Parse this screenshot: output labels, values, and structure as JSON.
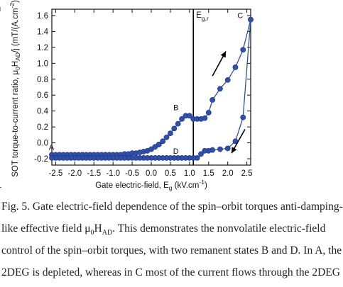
{
  "chart_data": {
    "type": "line",
    "xlabel": "Gate electric-field, E",
    "xlabel_sub": "g",
    "xlabel_unit": " (kV.cm",
    "xlabel_sup": "-1",
    "xlabel_close": ")",
    "ylabel_parts": [
      "SOT torque-to-current ratio, μ",
      "0",
      "H",
      "AD",
      "/j (mT/(A.cm",
      "-2",
      "))"
    ],
    "xlim": [
      -2.6,
      2.6
    ],
    "ylim": [
      -0.28,
      1.68
    ],
    "xticks": [
      "-2.5",
      "-2.0",
      "-1.5",
      "-1.0",
      "-0.5",
      "0.0",
      "0.5",
      "1.0",
      "1.5",
      "2.0",
      "2.5"
    ],
    "xtick_values": [
      -2.5,
      -2.0,
      -1.5,
      -1.0,
      -0.5,
      0.0,
      0.5,
      1.0,
      1.5,
      2.0,
      2.5
    ],
    "yticks": [
      "-0.2",
      "0.0",
      "0.2",
      "0.4",
      "0.6",
      "0.8",
      "1.0",
      "1.2",
      "1.4",
      "1.6"
    ],
    "ytick_values": [
      -0.2,
      0.0,
      0.2,
      0.4,
      0.6,
      0.8,
      1.0,
      1.2,
      1.4,
      1.6
    ],
    "vline": {
      "x": 1.1,
      "label": "E",
      "label_sub": "g,r"
    },
    "series": [
      {
        "color": "#2f4fa8",
        "x": [
          -2.6,
          -2.5,
          -2.4,
          -2.3,
          -2.2,
          -2.1,
          -2.0,
          -1.9,
          -1.8,
          -1.7,
          -1.6,
          -1.5,
          -1.4,
          -1.3,
          -1.2,
          -1.1,
          -1.0,
          -0.9,
          -0.8,
          -0.7,
          -0.6,
          -0.5,
          -0.4,
          -0.3,
          -0.2,
          -0.1,
          0.0,
          0.1,
          0.2,
          0.3,
          0.4,
          0.5,
          0.6,
          0.7,
          0.8,
          0.9,
          1.0,
          1.1,
          1.2,
          1.3,
          1.4,
          1.5,
          1.6,
          1.8,
          2.0,
          2.2,
          2.4,
          2.6
        ],
        "y": [
          -0.15,
          -0.15,
          -0.15,
          -0.15,
          -0.15,
          -0.15,
          -0.15,
          -0.15,
          -0.15,
          -0.15,
          -0.15,
          -0.15,
          -0.15,
          -0.15,
          -0.15,
          -0.15,
          -0.15,
          -0.15,
          -0.15,
          -0.14,
          -0.14,
          -0.13,
          -0.13,
          -0.12,
          -0.11,
          -0.1,
          -0.08,
          -0.05,
          -0.02,
          0.02,
          0.07,
          0.12,
          0.18,
          0.24,
          0.3,
          0.34,
          0.34,
          0.3,
          0.3,
          0.3,
          0.31,
          0.38,
          0.54,
          0.68,
          0.79,
          0.95,
          1.17,
          1.55
        ]
      },
      {
        "color": "#2f4fa8",
        "x": [
          2.6,
          2.4,
          2.2,
          2.0,
          1.8,
          1.6,
          1.5,
          1.4,
          1.3,
          1.2,
          1.1,
          1.0,
          0.9,
          0.8,
          0.7,
          0.6,
          0.5,
          0.4,
          0.3,
          0.2,
          0.1,
          0.0,
          -0.1,
          -0.2,
          -0.3,
          -0.4,
          -0.5,
          -0.6,
          -0.7,
          -0.8,
          -0.9,
          -1.0,
          -1.1,
          -1.2,
          -1.3,
          -1.4,
          -1.5,
          -1.6,
          -1.7,
          -1.8,
          -1.9,
          -2.0,
          -2.1,
          -2.2,
          -2.3,
          -2.4,
          -2.5,
          -2.6
        ],
        "y": [
          1.55,
          0.32,
          0.02,
          -0.07,
          -0.08,
          -0.09,
          -0.1,
          -0.1,
          -0.14,
          -0.19,
          -0.19,
          -0.19,
          -0.19,
          -0.19,
          -0.19,
          -0.19,
          -0.19,
          -0.19,
          -0.19,
          -0.19,
          -0.19,
          -0.19,
          -0.19,
          -0.19,
          -0.19,
          -0.19,
          -0.19,
          -0.19,
          -0.19,
          -0.19,
          -0.19,
          -0.19,
          -0.19,
          -0.19,
          -0.19,
          -0.19,
          -0.19,
          -0.19,
          -0.19,
          -0.19,
          -0.19,
          -0.19,
          -0.19,
          -0.19,
          -0.19,
          -0.19,
          -0.19,
          -0.19
        ]
      }
    ],
    "annotations": [
      {
        "text": "A",
        "x": -2.5,
        "y": -0.15
      },
      {
        "text": "B",
        "x": 0.83,
        "y": 0.34
      },
      {
        "text": "C",
        "x": 2.4,
        "y": 1.55
      },
      {
        "text": "D",
        "x": 0.83,
        "y": -0.19
      }
    ],
    "arrows": [
      {
        "from": [
          1.6,
          0.84
        ],
        "to": [
          1.95,
          1.15
        ]
      },
      {
        "from": [
          2.45,
          0.17
        ],
        "to": [
          2.1,
          -0.13
        ]
      }
    ],
    "legend": "none",
    "grid": false
  },
  "caption": {
    "line1": "Fig. 5. Gate electric-field dependence of the spin–orbit torques anti-damping-",
    "line2_pre": "like effective field μ",
    "line2_sub1": "0",
    "line2_mid": "H",
    "line2_sub2": "AD",
    "line2_post": ". This demonstrates the nonvolatile electric-field",
    "line3": "control of the spin–orbit torques, with two remanent states B and D. In A, the",
    "line4": "2DEG is depleted, whereas in C most of the current flows through the 2DEG"
  }
}
